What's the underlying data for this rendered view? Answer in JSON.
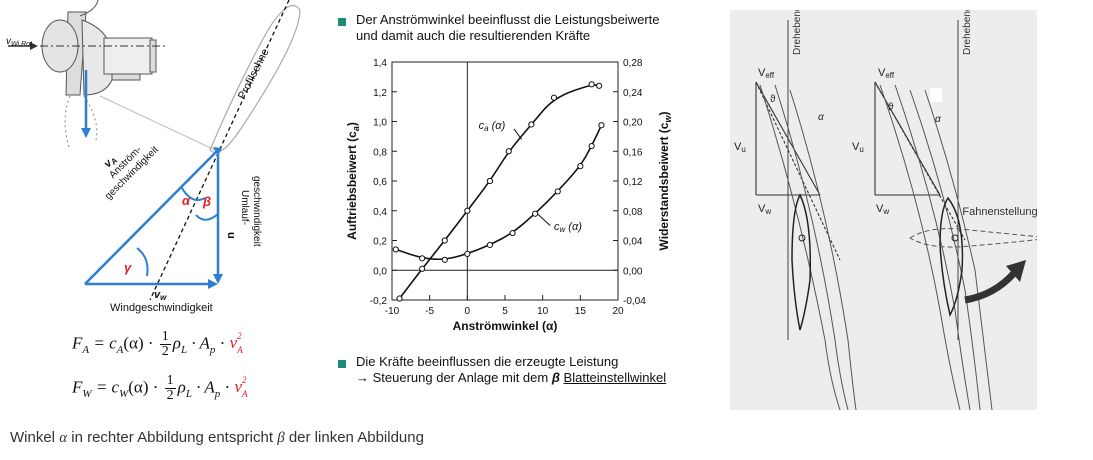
{
  "left_diagram": {
    "v_wirot_label": "v",
    "v_wirot_sub": "Wi,Rot",
    "profilsehne_label": "Profilsehne",
    "va_label": "v",
    "va_sub": "A",
    "va_text1": "Anström-",
    "va_text2": "geschwindigkeit",
    "alpha": "α",
    "beta": "β",
    "gamma": "γ",
    "u_label": "u",
    "umlauf1": "Umlauf-",
    "umlauf2": "geschwindigkeit",
    "vw_label": "v",
    "vw_sub": "w",
    "windgeschw": "Windgeschwindigkeit"
  },
  "formulas": {
    "fa_lhs": "F",
    "fa_lhs_sub": "A",
    "fa_coef": "c",
    "fa_coef_sub": "A",
    "fw_lhs": "F",
    "fw_lhs_sub": "W",
    "fw_coef": "c",
    "fw_coef_sub": "W",
    "alpha_arg": "(α) ·",
    "frac_num": "1",
    "frac_den": "2",
    "rho": "ρ",
    "rho_sub": "L",
    "dot_a": " · A",
    "ap_sub": "p",
    "dot": " · ",
    "va": "v",
    "va_sup": "2",
    "va_sub": "A"
  },
  "bullets": {
    "b1_line1": "Der Anströmwinkel beeinflusst die Leistungsbeiwerte",
    "b1_line2": "und damit auch die resultierenden Kräfte",
    "b2_line1": "Die Kräfte beeinflussen die erzeugte Leistung",
    "b2_line2_prefix": "→ Steuerung der Anlage mit dem ",
    "b2_line2_beta": "β",
    "b2_line2_link": "Blatteinstellwinkel"
  },
  "chart_data": {
    "type": "line",
    "xlabel": "Anströmwinkel (α)",
    "ylabel_left": "Auftriebsbeiwert (c",
    "ylabel_left_sub": "a",
    "ylabel_right": "Widerstandsbeiwert (c",
    "ylabel_right_sub": "w",
    "xlim": [
      -10,
      20
    ],
    "ylim_left": [
      -0.2,
      1.4
    ],
    "ylim_right": [
      -0.04,
      0.28
    ],
    "x_ticks": [
      "-10",
      "-5",
      "0",
      "5",
      "10",
      "15",
      "20"
    ],
    "y_left_ticks": [
      "-0,2",
      "0,0",
      "0,2",
      "0,4",
      "0,6",
      "0,8",
      "1,0",
      "1,2",
      "1,4"
    ],
    "y_right_ticks": [
      "-0,04",
      "0,00",
      "0,04",
      "0,08",
      "0,12",
      "0,16",
      "0,20",
      "0,24",
      "0,28"
    ],
    "series": [
      {
        "name": "ca (α)",
        "axis": "left",
        "x": [
          -9,
          -6,
          -3,
          0,
          3,
          5.5,
          8.5,
          11.5,
          16.5,
          17.5
        ],
        "values": [
          -0.19,
          0.01,
          0.2,
          0.4,
          0.6,
          0.8,
          0.98,
          1.16,
          1.25,
          1.24
        ]
      },
      {
        "name": "cw (α)",
        "axis": "right",
        "x": [
          -9.5,
          -6,
          -3,
          0,
          3,
          6,
          9,
          12,
          15,
          16.5,
          17.8
        ],
        "values": [
          0.028,
          0.016,
          0.014,
          0.022,
          0.034,
          0.05,
          0.076,
          0.106,
          0.14,
          0.167,
          0.195
        ]
      }
    ],
    "series_labels": {
      "ca_main": "c",
      "ca_sub": "a",
      "ca_arg": " (α)",
      "cw_main": "c",
      "cw_sub": "w",
      "cw_arg": " (α)"
    }
  },
  "sketch": {
    "veff1": "V",
    "veff1_sub": "eff",
    "veff2": "V",
    "veff2_sub": "eff",
    "vu1": "V",
    "vu1_sub": "u",
    "vu2": "V",
    "vu2_sub": "u",
    "vw1": "V",
    "vw1_sub": "w",
    "vw2": "V",
    "vw2_sub": "w",
    "drehebene1": "Drehebene",
    "drehebene2": "Drehebene",
    "theta1": "ϑ",
    "theta2": "ϑ",
    "alpha1": "α",
    "alpha2": "α",
    "fahnenstellung": "Fahnenstellung"
  },
  "caption": {
    "prefix": "Winkel ",
    "alpha": "α",
    "middle": " in rechter Abbildung entspricht ",
    "beta": "β",
    "suffix": " der linken Abbildung"
  },
  "colors": {
    "blue": "#2f7fd1",
    "red": "#e0202a",
    "teal": "#1f8a7a"
  }
}
